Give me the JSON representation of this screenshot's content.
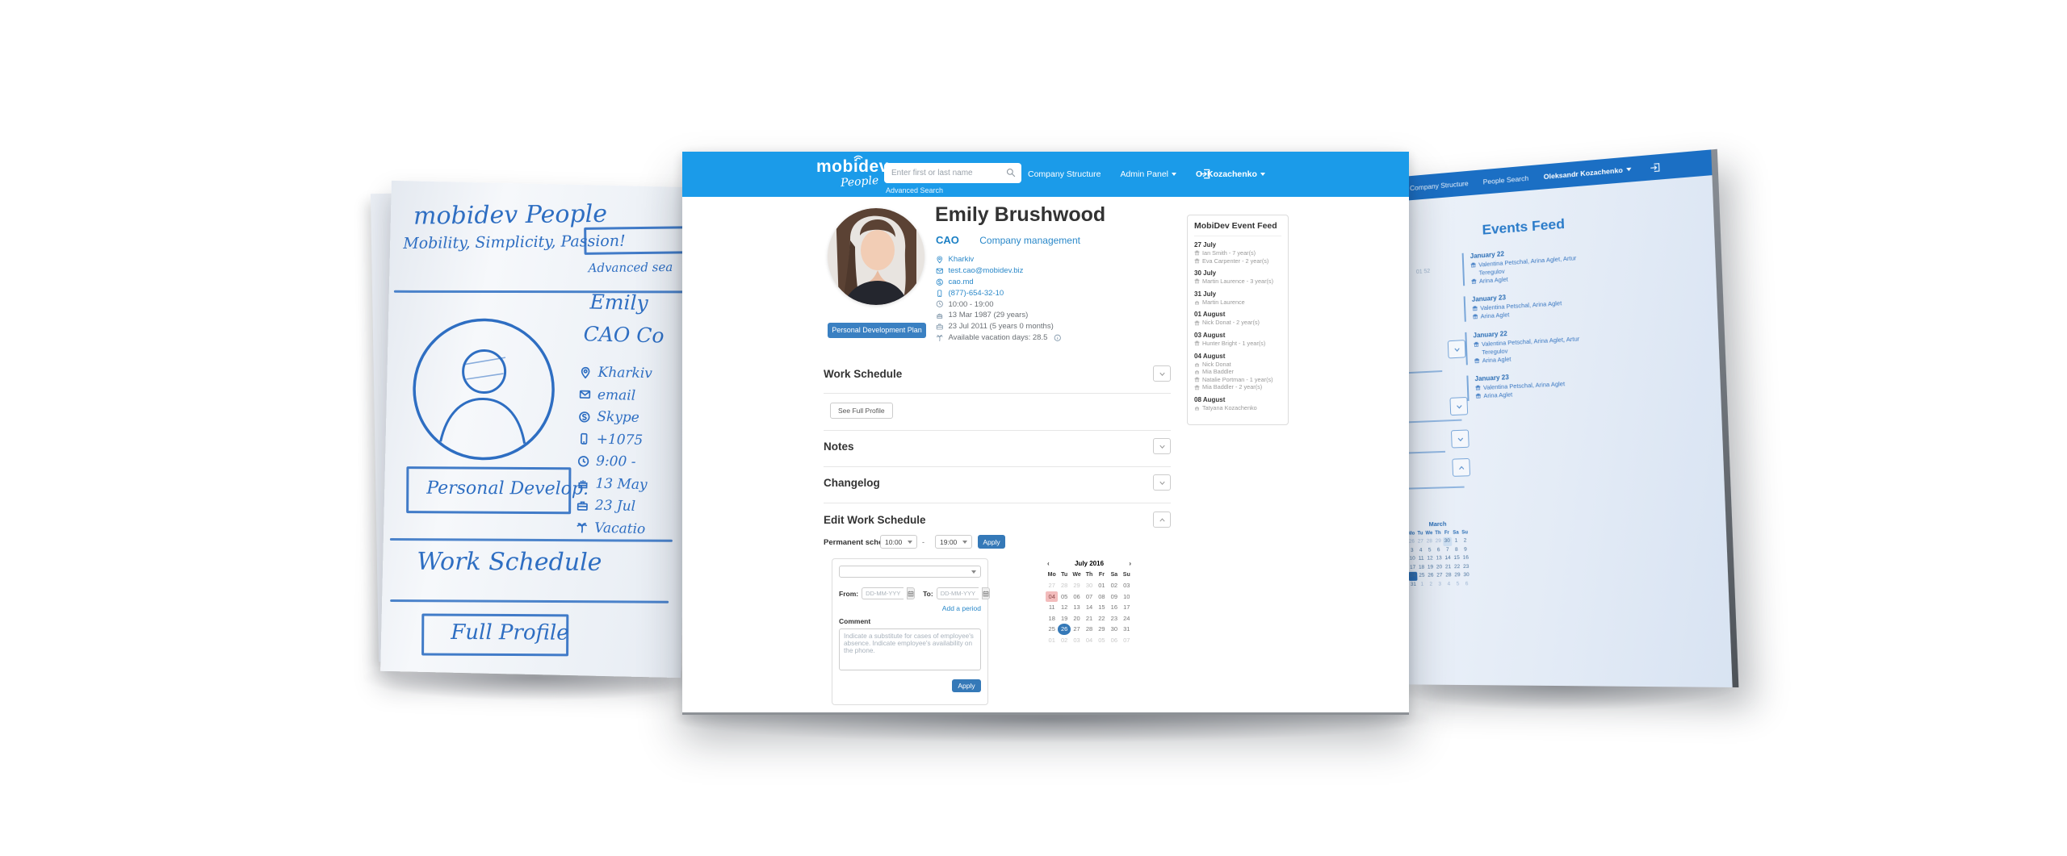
{
  "center": {
    "header": {
      "logo_main": "mobidev",
      "logo_sub": "People",
      "search_placeholder": "Enter first or last name",
      "advanced_search_label": "Advanced Search",
      "nav": [
        {
          "label": "Company Structure",
          "caret": false,
          "bold": false
        },
        {
          "label": "Admin Panel",
          "caret": true,
          "bold": false
        },
        {
          "label": "O. Kozachenko",
          "caret": true,
          "bold": true
        }
      ]
    },
    "profile": {
      "name": "Emily Brushwood",
      "role": "CAO",
      "department": "Company management",
      "pdp_button_label": "Personal Development Plan",
      "details": [
        {
          "icon": "pin",
          "text": "Kharkiv",
          "style": "link"
        },
        {
          "icon": "envelope",
          "text": "test.cao@mobidev.biz",
          "style": "link"
        },
        {
          "icon": "skype",
          "text": "cao.md",
          "style": "link"
        },
        {
          "icon": "phone",
          "text": "(877)-654-32-10",
          "style": "link"
        },
        {
          "icon": "clock",
          "text": "10:00 - 19:00",
          "style": "plain"
        },
        {
          "icon": "cake",
          "text": "13 Mar 1987 (29 years)",
          "style": "plain"
        },
        {
          "icon": "briefcase",
          "text": "23 Jul 2011 (5 years 0 months)",
          "style": "plain"
        },
        {
          "icon": "palm",
          "text": "Available vacation days: 28.5",
          "style": "plain",
          "info": true
        }
      ]
    },
    "event_feed": {
      "title": "MobiDev Event Feed",
      "groups": [
        {
          "date": "27 July",
          "items": [
            {
              "icon": "gift",
              "text": "Ian Smith - 7 year(s)"
            },
            {
              "icon": "gift",
              "text": "Eva Carpenter - 2 year(s)"
            }
          ]
        },
        {
          "date": "30 July",
          "items": [
            {
              "icon": "gift",
              "text": "Martin Laurence - 3 year(s)"
            }
          ]
        },
        {
          "date": "31 July",
          "items": [
            {
              "icon": "cake",
              "text": "Martin Laurence"
            }
          ]
        },
        {
          "date": "01 August",
          "items": [
            {
              "icon": "gift",
              "text": "Nick Donat - 2 year(s)"
            }
          ]
        },
        {
          "date": "03 August",
          "items": [
            {
              "icon": "gift",
              "text": "Hunter Bright - 1 year(s)"
            }
          ]
        },
        {
          "date": "04 August",
          "items": [
            {
              "icon": "cake",
              "text": "Nick Donat"
            },
            {
              "icon": "cake",
              "text": "Mia Baddler"
            },
            {
              "icon": "gift",
              "text": "Natalie Portman - 1 year(s)"
            },
            {
              "icon": "gift",
              "text": "Mia Baddler - 2 year(s)"
            }
          ]
        },
        {
          "date": "08 August",
          "items": [
            {
              "icon": "cake",
              "text": "Tatyana Kozachenko"
            }
          ]
        }
      ]
    },
    "sections": {
      "work_schedule": "Work Schedule",
      "see_full_profile": "See Full Profile",
      "notes": "Notes",
      "changelog": "Changelog",
      "edit_work_schedule": "Edit Work Schedule"
    },
    "edit_form": {
      "permanent_label": "Permanent schedule:",
      "time_from": "10:00",
      "range_dash": "-",
      "time_to": "19:00",
      "apply_label": "Apply",
      "from_label": "From:",
      "to_label": "To:",
      "date_placeholder": "DD-MM-YYYY",
      "add_period_label": "Add a period",
      "comment_label": "Comment",
      "comment_placeholder": "Indicate a substitute for cases of employee's absence. Indicate employee's availability on the phone.",
      "apply2_label": "Apply"
    },
    "calendar": {
      "title": "July 2016",
      "prev": "‹",
      "next": "›",
      "day_names": [
        "Mo",
        "Tu",
        "We",
        "Th",
        "Fr",
        "Sa",
        "Su"
      ],
      "weeks": [
        [
          "27",
          "28",
          "29",
          "30",
          "01",
          "02",
          "03"
        ],
        [
          "04",
          "05",
          "06",
          "07",
          "08",
          "09",
          "10"
        ],
        [
          "11",
          "12",
          "13",
          "14",
          "15",
          "16",
          "17"
        ],
        [
          "18",
          "19",
          "20",
          "21",
          "22",
          "23",
          "24"
        ],
        [
          "25",
          "26",
          "27",
          "28",
          "29",
          "30",
          "31"
        ],
        [
          "01",
          "02",
          "03",
          "04",
          "05",
          "06",
          "07"
        ]
      ],
      "muted_cells": [
        [
          0,
          0
        ],
        [
          0,
          1
        ],
        [
          0,
          2
        ],
        [
          0,
          3
        ],
        [
          5,
          0
        ],
        [
          5,
          1
        ],
        [
          5,
          2
        ],
        [
          5,
          3
        ],
        [
          5,
          4
        ],
        [
          5,
          5
        ],
        [
          5,
          6
        ]
      ],
      "highlighted_cell": [
        1,
        0
      ],
      "selected_cell": [
        4,
        1
      ]
    }
  },
  "sketch": {
    "logo_line": "mobidev People",
    "tagline": "Mobility, Simplicity, Passion!",
    "advanced_label": "Advanced sea",
    "name": "Emily",
    "role_line": "CAO   Co",
    "details": [
      {
        "icon": "pin",
        "text": "Kharkiv"
      },
      {
        "icon": "envelope",
        "text": "email"
      },
      {
        "icon": "skype",
        "text": "Skype"
      },
      {
        "icon": "phone",
        "text": "+1075"
      },
      {
        "icon": "clock",
        "text": "9:00 -"
      },
      {
        "icon": "cake",
        "text": "13 May"
      },
      {
        "icon": "briefcase",
        "text": "23 Jul"
      },
      {
        "icon": "palm",
        "text": "Vacatio"
      }
    ],
    "box1_label": "Personal Develop.",
    "schedule_label": "Work Schedule",
    "box2_label": "Full Profile"
  },
  "right_panel": {
    "nav": [
      {
        "label": "Company Structure",
        "caret": false,
        "bold": false
      },
      {
        "label": "People Search",
        "caret": false,
        "bold": false
      },
      {
        "label": "Oleksandr Kozachenko",
        "caret": true,
        "bold": true
      }
    ],
    "title": "Events Feed",
    "fragment": "01 52",
    "chevrons": [
      "down",
      "down",
      "down",
      "up"
    ],
    "chevron_tops": [
      206,
      276,
      316,
      351
    ],
    "divider_tops": [
      242,
      303,
      341,
      385
    ],
    "divider_widths": [
      62,
      84,
      62,
      84
    ],
    "groups": [
      {
        "date": "January 22",
        "items": [
          {
            "icon": "gift",
            "text": "Valentina Petschal, Arina Aglet, Artur Teregulov"
          },
          {
            "icon": "gift",
            "text": "Arina Aglet"
          }
        ]
      },
      {
        "date": "January 23",
        "items": [
          {
            "icon": "gift",
            "text": "Valentina Petschal, Arina Aglet"
          },
          {
            "icon": "gift",
            "text": "Arina Aglet"
          }
        ]
      },
      {
        "date": "January 22",
        "items": [
          {
            "icon": "gift",
            "text": "Valentina Petschal, Arina Aglet, Artur Teregulov"
          },
          {
            "icon": "gift",
            "text": "Arina Aglet"
          }
        ]
      },
      {
        "date": "January 23",
        "items": [
          {
            "icon": "gift",
            "text": "Valentina Petschal, Arina Aglet"
          },
          {
            "icon": "gift",
            "text": "Arina Aglet"
          }
        ]
      }
    ],
    "calendar": {
      "title": "March",
      "day_names": [
        "Mo",
        "Tu",
        "We",
        "Th",
        "Fr",
        "Sa",
        "Su"
      ],
      "weeks": [
        [
          "26",
          "27",
          "28",
          "29",
          "30",
          "1",
          "2"
        ],
        [
          "3",
          "4",
          "5",
          "6",
          "7",
          "8",
          "9"
        ],
        [
          "10",
          "11",
          "12",
          "13",
          "14",
          "15",
          "16"
        ],
        [
          "17",
          "18",
          "19",
          "20",
          "21",
          "22",
          "23"
        ],
        [
          "24",
          "25",
          "26",
          "27",
          "28",
          "29",
          "30"
        ],
        [
          "31",
          "1",
          "2",
          "3",
          "4",
          "5",
          "6"
        ]
      ],
      "muted_cells": [
        [
          0,
          0
        ],
        [
          0,
          1
        ],
        [
          0,
          2
        ],
        [
          0,
          3
        ],
        [
          0,
          4
        ],
        [
          5,
          1
        ],
        [
          5,
          2
        ],
        [
          5,
          3
        ],
        [
          5,
          4
        ],
        [
          5,
          5
        ],
        [
          5,
          6
        ]
      ],
      "highlighted_cell": [
        0,
        4
      ],
      "selected_cell": [
        4,
        0
      ]
    }
  }
}
